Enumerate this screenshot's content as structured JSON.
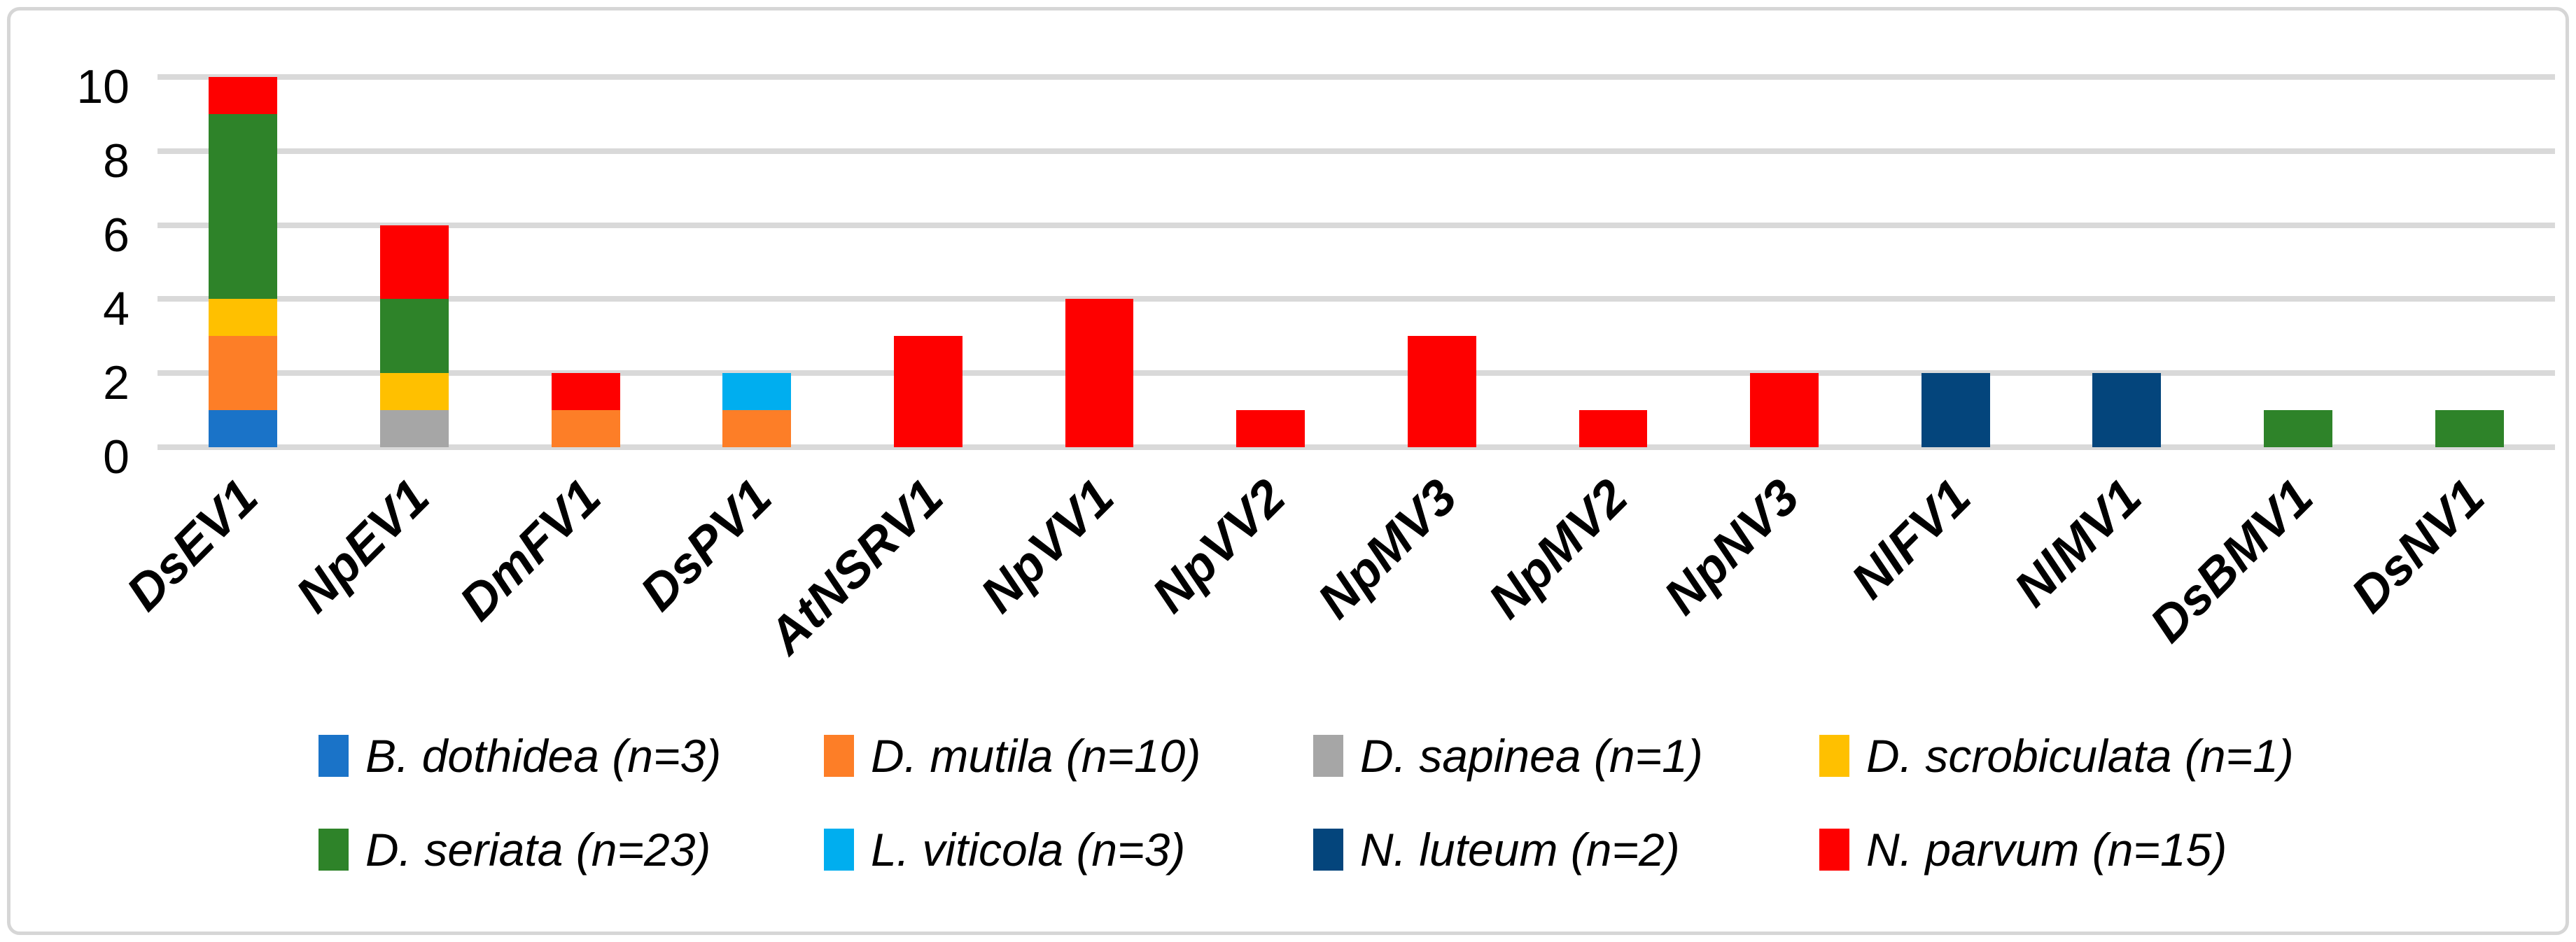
{
  "chart_data": {
    "type": "bar",
    "stacked": true,
    "title": "",
    "xlabel": "",
    "ylabel": "",
    "ylim": [
      0,
      10
    ],
    "yticks": [
      0,
      2,
      4,
      6,
      8,
      10
    ],
    "grid": true,
    "legend_position": "bottom",
    "gridline_color": "#D9D9D9",
    "categories": [
      "DsEV1",
      "NpEV1",
      "DmFV1",
      "DsPV1",
      "AtNSRV1",
      "NpVV1",
      "NpVV2",
      "NpMV3",
      "NpMV2",
      "NpNV3",
      "NlFV1",
      "NlMV1",
      "DsBMV1",
      "DsNV1"
    ],
    "series": [
      {
        "name": "B. dothidea (n=3)",
        "color": "#1A73C8",
        "values": [
          1,
          0,
          0,
          0,
          0,
          0,
          0,
          0,
          0,
          0,
          0,
          0,
          0,
          0
        ]
      },
      {
        "name": "D. mutila (n=10)",
        "color": "#FD7E27",
        "values": [
          2,
          0,
          1,
          1,
          0,
          0,
          0,
          0,
          0,
          0,
          0,
          0,
          0,
          0
        ]
      },
      {
        "name": "D. sapinea (n=1)",
        "color": "#A6A6A6",
        "values": [
          0,
          1,
          0,
          0,
          0,
          0,
          0,
          0,
          0,
          0,
          0,
          0,
          0,
          0
        ]
      },
      {
        "name": "D. scrobiculata (n=1)",
        "color": "#FFC000",
        "values": [
          1,
          1,
          0,
          0,
          0,
          0,
          0,
          0,
          0,
          0,
          0,
          0,
          0,
          0
        ]
      },
      {
        "name": "D. seriata (n=23)",
        "color": "#2E8329",
        "values": [
          5,
          2,
          0,
          0,
          0,
          0,
          0,
          0,
          0,
          0,
          0,
          0,
          1,
          1
        ]
      },
      {
        "name": "L. viticola (n=3)",
        "color": "#00AEEF",
        "values": [
          0,
          0,
          0,
          1,
          0,
          0,
          0,
          0,
          0,
          0,
          0,
          0,
          0,
          0
        ]
      },
      {
        "name": "N. luteum (n=2)",
        "color": "#04457C",
        "values": [
          0,
          0,
          0,
          0,
          0,
          0,
          0,
          0,
          0,
          0,
          2,
          2,
          0,
          0
        ]
      },
      {
        "name": "N. parvum (n=15)",
        "color": "#FE0000",
        "values": [
          1,
          2,
          1,
          0,
          3,
          4,
          1,
          3,
          1,
          2,
          0,
          0,
          0,
          0
        ]
      }
    ]
  }
}
